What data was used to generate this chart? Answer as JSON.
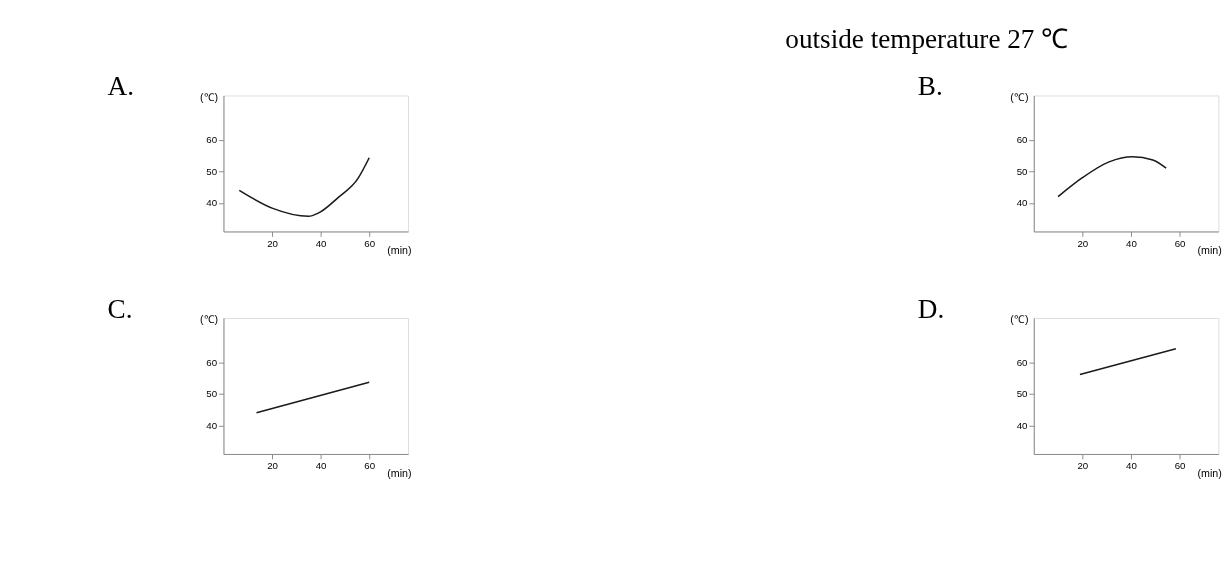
{
  "chart_data": [
    {
      "type": "line",
      "title": "A.",
      "ylabel": "(℃)",
      "xlabel": "(min)",
      "annotations": [
        "outside temperature 27 ℃"
      ],
      "x": [
        6.5,
        20.3,
        35,
        39,
        47.3,
        55.4,
        60
      ],
      "values": [
        44,
        38.3,
        35.8,
        36.8,
        41.8,
        47.8,
        54.3
      ],
      "color": "#1a1a1a",
      "xlim": [
        0,
        76
      ],
      "ylim": [
        31,
        74
      ],
      "xticks": [
        20,
        40,
        60
      ],
      "yticks": [
        40,
        50,
        60
      ]
    },
    {
      "type": "line",
      "title": "B.",
      "ylabel": "(℃)",
      "xlabel": "(min)",
      "x": [
        10,
        20,
        31,
        40.7,
        49,
        54.5
      ],
      "values": [
        42,
        48,
        53,
        54.6,
        53.6,
        51
      ],
      "color": "#1a1a1a",
      "xlim": [
        0,
        76
      ],
      "ylim": [
        31,
        74
      ],
      "xticks": [
        20,
        40,
        60
      ],
      "yticks": [
        40,
        50,
        60
      ]
    },
    {
      "type": "line",
      "title": "C.",
      "ylabel": "(℃)",
      "xlabel": "(min)",
      "x": [
        13.6,
        60
      ],
      "values": [
        44,
        53.7
      ],
      "color": "#1a1a1a",
      "xlim": [
        0,
        76
      ],
      "ylim": [
        31,
        74
      ],
      "xticks": [
        20,
        40,
        60
      ],
      "yticks": [
        40,
        50,
        60
      ]
    },
    {
      "type": "line",
      "title": "D.",
      "ylabel": "(℃)",
      "xlabel": "(min)",
      "x": [
        19,
        58.5
      ],
      "values": [
        56.1,
        64.3
      ],
      "color": "#1a1a1a",
      "xlim": [
        0,
        76
      ],
      "ylim": [
        31,
        74
      ],
      "xticks": [
        20,
        40,
        60
      ],
      "yticks": [
        40,
        50,
        60
      ]
    }
  ]
}
